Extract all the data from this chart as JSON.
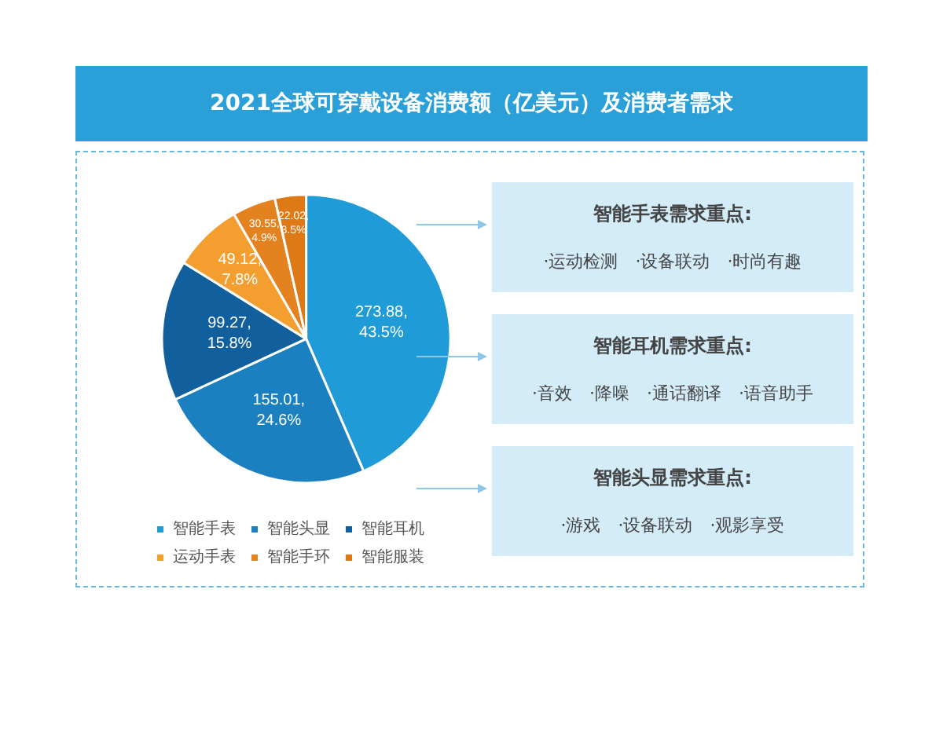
{
  "chart_data": {
    "type": "pie",
    "title": "2021全球可穿戴设备消费额（亿美元）及消费者需求",
    "categories": [
      "智能手表",
      "智能头显",
      "智能耳机",
      "运动手表",
      "智能手环",
      "智能服装"
    ],
    "values": [
      273.88,
      155.01,
      99.27,
      49.12,
      30.55,
      22.02
    ],
    "colors": [
      "#1f9bd7",
      "#1a80c0",
      "#115f9c",
      "#f59e30",
      "#e4821f",
      "#de7a16"
    ],
    "value_labels": [
      "273.88,\n43.5%",
      "155.01,\n24.6%",
      "99.27,\n15.8%",
      "49.12,\n7.8%",
      "30.55,\n4.9%",
      "22.02,\n3.5%"
    ],
    "legend": "bottom",
    "annotations": [
      "智能手表需求重点:",
      "·运动检测　·设备联动　·时尚有趣",
      "智能耳机需求重点:",
      "·音效　·降噪　·通话翻译　·语音助手",
      "智能头显需求重点:",
      "·游戏　·设备联动　·观影享受"
    ]
  }
}
